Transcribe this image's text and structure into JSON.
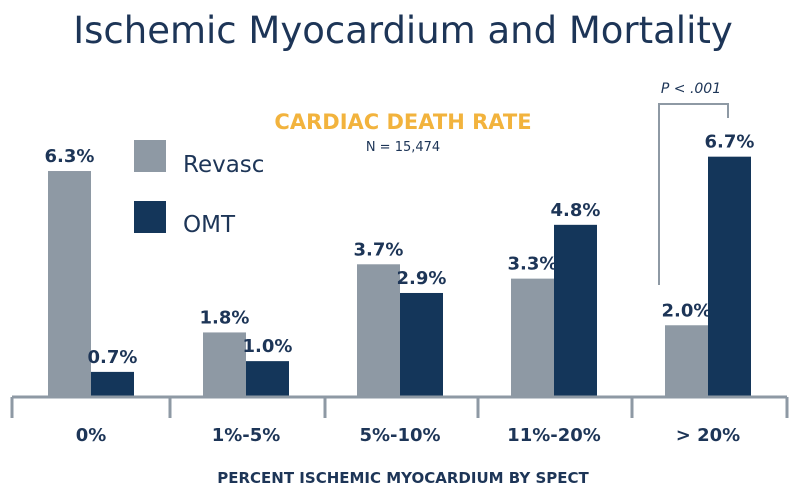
{
  "chart_data": {
    "type": "bar",
    "title": "Ischemic Myocardium and Mortality",
    "subtitle": "CARDIAC DEATH RATE",
    "note": "N = 15,474",
    "xlabel": "PERCENT ISCHEMIC MYOCARDIUM BY SPECT",
    "ylabel": "",
    "ylim": [
      0,
      7
    ],
    "categories": [
      "0%",
      "1%-5%",
      "5%-10%",
      "11%-20%",
      "> 20%"
    ],
    "series": [
      {
        "name": "Revasc",
        "color": "#8e99a4",
        "values": [
          6.3,
          1.8,
          3.7,
          3.3,
          2.0
        ],
        "labels": [
          "6.3%",
          "1.8%",
          "3.7%",
          "3.3%",
          "2.0%"
        ]
      },
      {
        "name": "OMT",
        "color": "#14365a",
        "values": [
          0.7,
          1.0,
          2.9,
          4.8,
          6.7
        ],
        "labels": [
          "0.7%",
          "1.0%",
          "2.9%",
          "4.8%",
          "6.7%"
        ]
      }
    ],
    "annotation": {
      "text": "P < .001",
      "category": "> 20%"
    },
    "legend": "top-left",
    "grid": false
  }
}
